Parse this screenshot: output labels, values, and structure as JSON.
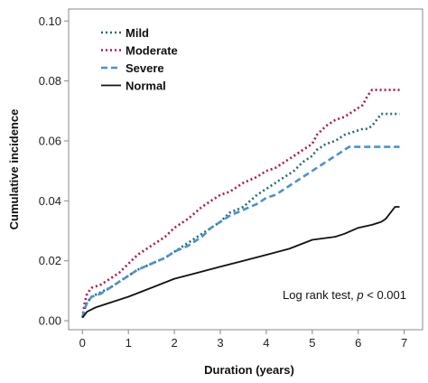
{
  "chart_data": {
    "type": "line",
    "xlabel": "Duration (years)",
    "ylabel": "Cumulative incidence",
    "xlim": [
      -0.3,
      7.4
    ],
    "ylim": [
      -0.003,
      0.104
    ],
    "xticks": [
      "0",
      "1",
      "2",
      "3",
      "4",
      "5",
      "6",
      "7"
    ],
    "yticks": [
      "0.00",
      "0.02",
      "0.04",
      "0.06",
      "0.08",
      "0.10"
    ],
    "grid": false,
    "legend_position": "top-left",
    "annotation": {
      "prefix": "Log rank test, ",
      "italic": "p",
      "suffix": " < 0.001"
    },
    "series": [
      {
        "name": "Mild",
        "color": "#1f6f73",
        "dash": "dotted",
        "x": [
          0,
          0.05,
          0.1,
          0.2,
          0.4,
          0.6,
          0.8,
          1.0,
          1.2,
          1.5,
          1.8,
          2.0,
          2.3,
          2.6,
          2.8,
          3.0,
          3.2,
          3.5,
          3.8,
          4.0,
          4.2,
          4.4,
          4.6,
          4.8,
          5.0,
          5.1,
          5.3,
          5.5,
          5.7,
          5.9,
          6.1,
          6.2,
          6.3,
          6.5,
          6.9
        ],
        "y": [
          0.001,
          0.004,
          0.006,
          0.008,
          0.0095,
          0.011,
          0.013,
          0.015,
          0.017,
          0.019,
          0.021,
          0.023,
          0.026,
          0.029,
          0.031,
          0.033,
          0.036,
          0.038,
          0.042,
          0.044,
          0.046,
          0.048,
          0.05,
          0.053,
          0.055,
          0.057,
          0.059,
          0.06,
          0.062,
          0.063,
          0.064,
          0.064,
          0.065,
          0.069,
          0.069
        ]
      },
      {
        "name": "Moderate",
        "color": "#b0154f",
        "dash": "dotted",
        "x": [
          0,
          0.05,
          0.1,
          0.2,
          0.4,
          0.6,
          0.8,
          1.0,
          1.2,
          1.5,
          1.8,
          2.0,
          2.3,
          2.6,
          2.8,
          3.0,
          3.2,
          3.5,
          3.8,
          4.0,
          4.2,
          4.4,
          4.6,
          4.8,
          5.0,
          5.1,
          5.3,
          5.5,
          5.7,
          5.9,
          6.1,
          6.2,
          6.3,
          6.5,
          6.9
        ],
        "y": [
          0.001,
          0.006,
          0.009,
          0.011,
          0.012,
          0.014,
          0.016,
          0.019,
          0.022,
          0.025,
          0.028,
          0.031,
          0.034,
          0.038,
          0.04,
          0.042,
          0.043,
          0.046,
          0.048,
          0.05,
          0.051,
          0.053,
          0.055,
          0.057,
          0.059,
          0.062,
          0.065,
          0.067,
          0.068,
          0.07,
          0.072,
          0.075,
          0.077,
          0.077,
          0.077
        ]
      },
      {
        "name": "Severe",
        "color": "#4a90d9",
        "dash": "dashed",
        "x": [
          0,
          0.05,
          0.1,
          0.2,
          0.4,
          0.6,
          0.8,
          1.0,
          1.2,
          1.5,
          1.8,
          2.0,
          2.3,
          2.6,
          2.8,
          3.0,
          3.2,
          3.5,
          3.8,
          4.0,
          4.2,
          4.4,
          4.6,
          4.8,
          5.0,
          5.2,
          5.4,
          5.6,
          5.7,
          5.8,
          6.9
        ],
        "y": [
          0.001,
          0.004,
          0.006,
          0.008,
          0.009,
          0.011,
          0.013,
          0.015,
          0.017,
          0.019,
          0.021,
          0.023,
          0.025,
          0.028,
          0.031,
          0.033,
          0.035,
          0.037,
          0.039,
          0.041,
          0.042,
          0.044,
          0.046,
          0.048,
          0.05,
          0.052,
          0.054,
          0.056,
          0.057,
          0.058,
          0.058
        ]
      },
      {
        "name": "Normal",
        "color": "#111111",
        "dash": "solid",
        "x": [
          0,
          0.05,
          0.1,
          0.3,
          0.6,
          1.0,
          1.5,
          2.0,
          2.5,
          3.0,
          3.5,
          4.0,
          4.5,
          5.0,
          5.5,
          5.7,
          6.0,
          6.3,
          6.5,
          6.6,
          6.7,
          6.8,
          6.9
        ],
        "y": [
          0.001,
          0.002,
          0.003,
          0.0045,
          0.006,
          0.008,
          0.011,
          0.014,
          0.016,
          0.018,
          0.02,
          0.022,
          0.024,
          0.027,
          0.028,
          0.029,
          0.031,
          0.032,
          0.033,
          0.034,
          0.036,
          0.038,
          0.038
        ]
      }
    ]
  }
}
